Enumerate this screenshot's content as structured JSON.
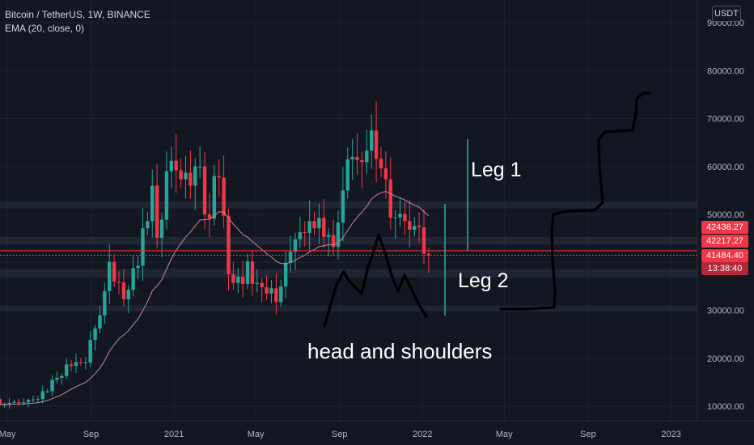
{
  "legend": {
    "symbol": "Bitcoin / TetherUS, 1W, BINANCE",
    "indicator": "EMA (20, close, 0)"
  },
  "currency": "USDT",
  "price_tags": {
    "t1": "42436.27",
    "t2": "42217.27",
    "t3": "41484.40",
    "t4": "13:38:40"
  },
  "annotations": {
    "leg1": "Leg 1",
    "leg2": "Leg 2",
    "pattern": "head and shoulders"
  },
  "colors": {
    "background": "#131722",
    "up": "#26a69a",
    "down": "#f23645",
    "ema": "#c9879a",
    "grid": "#1f2330",
    "zone": "#2a3142",
    "leg_line": "#26a69a",
    "drawing": "#000000"
  },
  "chart_data": {
    "type": "candlestick",
    "interval": "1W",
    "x_ticks": [
      "May",
      "Sep",
      "2021",
      "May",
      "Sep",
      "2022",
      "May",
      "Sep",
      "2023"
    ],
    "y_ticks": [
      10000,
      20000,
      30000,
      40000,
      50000,
      60000,
      70000,
      80000,
      90000
    ],
    "ylim": [
      7000,
      93000
    ],
    "xlim": [
      "2020-05-01",
      "2023-03-15"
    ],
    "last_date": "2022-01-10",
    "closes": [
      8700,
      9700,
      9300,
      9400,
      9700,
      9000,
      9500,
      9400,
      9200,
      9300,
      9100,
      9100,
      9200,
      9200,
      9700,
      10900,
      11200,
      11600,
      11900,
      11700,
      11500,
      11500,
      10300,
      10300,
      10700,
      10900,
      10700,
      10800,
      11300,
      11400,
      11500,
      13100,
      13100,
      15500,
      15900,
      16300,
      18700,
      18400,
      19200,
      19000,
      19100,
      23800,
      26200,
      28900,
      34000,
      40100,
      36000,
      35800,
      32300,
      34300,
      38800,
      39300,
      47100,
      48600,
      56000,
      45100,
      48900,
      59000,
      61200,
      59200,
      57300,
      58700,
      56000,
      60000,
      60000,
      50000,
      49100,
      58000,
      57700,
      49700,
      37500,
      35700,
      37000,
      35500,
      40200,
      35500,
      35700,
      34800,
      33500,
      34600,
      31700,
      35000,
      39900,
      42200,
      44800,
      46300,
      46100,
      48600,
      47100,
      49300,
      45300,
      45700,
      43200,
      48300,
      55000,
      61500,
      62000,
      61300,
      60900,
      63300,
      67500,
      61600,
      59600,
      57300,
      49300,
      49400,
      50100,
      48600,
      46800,
      47600,
      47300,
      41800,
      41484
    ]
  }
}
